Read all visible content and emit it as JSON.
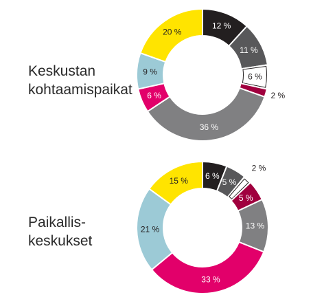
{
  "chart_data": [
    {
      "type": "pie",
      "title_lines": [
        "Keskustan",
        "kohtaamispaikat"
      ],
      "slices": [
        {
          "value": 12,
          "label": "12 %",
          "color": "#231f20"
        },
        {
          "value": 11,
          "label": "11 %",
          "color": "#58585a"
        },
        {
          "value": 6,
          "label": "6 %",
          "color": "#ffffff"
        },
        {
          "value": 2,
          "label": "2 %",
          "color": "#a0003e"
        },
        {
          "value": 36,
          "label": "36 %",
          "color": "#808082"
        },
        {
          "value": 6,
          "label": "6 %",
          "color": "#e2006a"
        },
        {
          "value": 9,
          "label": "9 %",
          "color": "#9ccad6"
        },
        {
          "value": 20,
          "label": "20 %",
          "color": "#ffe400"
        }
      ]
    },
    {
      "type": "pie",
      "title_lines": [
        "Paikallis-",
        "keskukset"
      ],
      "slices": [
        {
          "value": 6,
          "label": "6 %",
          "color": "#231f20"
        },
        {
          "value": 5,
          "label": "5 %",
          "color": "#58585a"
        },
        {
          "value": 2,
          "label": "2 %",
          "color": "#ffffff"
        },
        {
          "value": 5,
          "label": "5 %",
          "color": "#a0003e"
        },
        {
          "value": 13,
          "label": "13 %",
          "color": "#808082"
        },
        {
          "value": 33,
          "label": "33 %",
          "color": "#e2006a"
        },
        {
          "value": 21,
          "label": "21 %",
          "color": "#9ccad6"
        },
        {
          "value": 15,
          "label": "15 %",
          "color": "#ffe400"
        }
      ]
    }
  ]
}
